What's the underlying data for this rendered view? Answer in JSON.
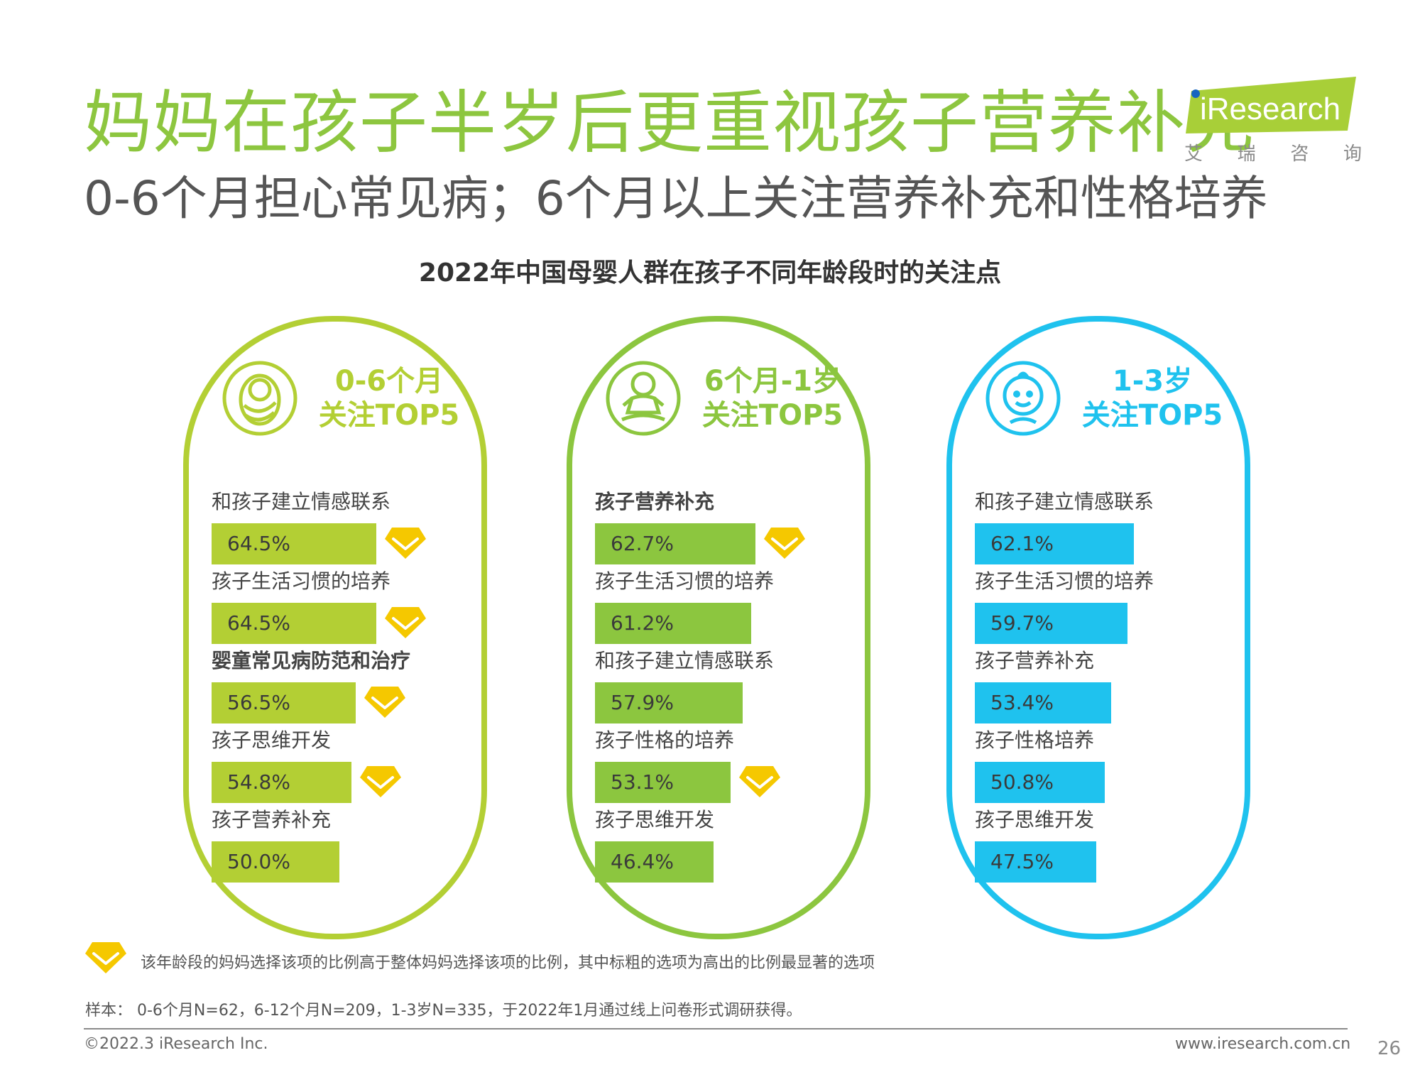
{
  "header": {
    "title": "妈妈在孩子半岁后更重视孩子营养补充",
    "subtitle": "0-6个月担心常见病；6个月以上关注营养补充和性格培养"
  },
  "logo": {
    "text": "iResearch",
    "subtext": [
      "艾",
      "瑞",
      "咨",
      "询"
    ],
    "color": "#a8cf38"
  },
  "colors": {
    "green_light": "#b3cf34",
    "green_dark": "#8cc63f",
    "blue": "#1fc2ee",
    "diamond": "#f5c800",
    "title_green": "#8dc63f"
  },
  "chart_data": {
    "type": "bar",
    "title": "2022年中国母婴人群在孩子不同年龄段时的关注点",
    "panels": [
      {
        "name": "0-6个月",
        "header_line1": "0-6个月",
        "header_line2": "关注TOP5",
        "icon": "swaddled-baby-icon",
        "color": "#b3cf34",
        "border_color": "#b3cf34",
        "items": [
          {
            "label": "和孩子建立情感联系",
            "value": 64.5,
            "display": "64.5%",
            "highlight": true,
            "bold": false
          },
          {
            "label": "孩子生活习惯的培养",
            "value": 64.5,
            "display": "64.5%",
            "highlight": true,
            "bold": false
          },
          {
            "label": "婴童常见病防范和治疗",
            "value": 56.5,
            "display": "56.5%",
            "highlight": true,
            "bold": true
          },
          {
            "label": "孩子思维开发",
            "value": 54.8,
            "display": "54.8%",
            "highlight": true,
            "bold": false
          },
          {
            "label": "孩子营养补充",
            "value": 50.0,
            "display": "50.0%",
            "highlight": false,
            "bold": false
          }
        ]
      },
      {
        "name": "6个月-1岁",
        "header_line1": "6个月-1岁",
        "header_line2": "关注TOP5",
        "icon": "sitting-baby-icon",
        "color": "#8cc63f",
        "border_color": "#8cc63f",
        "items": [
          {
            "label": "孩子营养补充",
            "value": 62.7,
            "display": "62.7%",
            "highlight": true,
            "bold": true
          },
          {
            "label": "孩子生活习惯的培养",
            "value": 61.2,
            "display": "61.2%",
            "highlight": false,
            "bold": false
          },
          {
            "label": "和孩子建立情感联系",
            "value": 57.9,
            "display": "57.9%",
            "highlight": false,
            "bold": false
          },
          {
            "label": "孩子性格的培养",
            "value": 53.1,
            "display": "53.1%",
            "highlight": true,
            "bold": false
          },
          {
            "label": "孩子思维开发",
            "value": 46.4,
            "display": "46.4%",
            "highlight": false,
            "bold": false
          }
        ]
      },
      {
        "name": "1-3岁",
        "header_line1": "1-3岁",
        "header_line2": "关注TOP5",
        "icon": "toddler-face-icon",
        "color": "#1fc2ee",
        "border_color": "#1fc2ee",
        "items": [
          {
            "label": "和孩子建立情感联系",
            "value": 62.1,
            "display": "62.1%",
            "highlight": false,
            "bold": false
          },
          {
            "label": "孩子生活习惯的培养",
            "value": 59.7,
            "display": "59.7%",
            "highlight": false,
            "bold": false
          },
          {
            "label": "孩子营养补充",
            "value": 53.4,
            "display": "53.4%",
            "highlight": false,
            "bold": false
          },
          {
            "label": "孩子性格培养",
            "value": 50.8,
            "display": "50.8%",
            "highlight": false,
            "bold": false
          },
          {
            "label": "孩子思维开发",
            "value": 47.5,
            "display": "47.5%",
            "highlight": false,
            "bold": false
          }
        ]
      }
    ]
  },
  "legend": {
    "text": "该年龄段的妈妈选择该项的比例高于整体妈妈选择该项的比例，其中标粗的选项为高出的比例最显著的选项"
  },
  "notes": {
    "sample": "样本： 0-6个月N=62，6-12个月N=209，1-3岁N=335，于2022年1月通过线上问卷形式调研获得。"
  },
  "footer": {
    "copyright": "©2022.3 iResearch Inc.",
    "website": "www.iresearch.com.cn",
    "page": "26"
  }
}
